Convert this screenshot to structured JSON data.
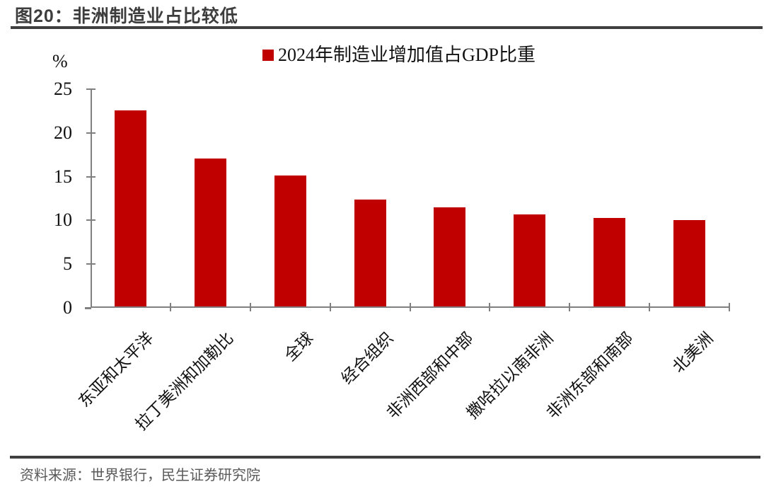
{
  "figure": {
    "title": "图20：非洲制造业占比较低",
    "source": "资料来源：世界银行，民生证券研究院"
  },
  "chart_data": {
    "type": "bar",
    "title": "图20：非洲制造业占比较低",
    "legend": [
      "2024年制造业增加值占GDP比重"
    ],
    "legend_position": "top-center",
    "unit_label": "%",
    "categories": [
      "东亚和太平洋",
      "拉丁美洲和加勒比",
      "全球",
      "经合组织",
      "非洲西部和中部",
      "撒哈拉以南非洲",
      "非洲东部和南部",
      "北美洲"
    ],
    "values": [
      22.4,
      16.9,
      15.0,
      12.2,
      11.3,
      10.5,
      10.1,
      9.9
    ],
    "ylim": [
      0,
      25
    ],
    "yticks": [
      0,
      5,
      10,
      15,
      20,
      25
    ],
    "grid": false,
    "bar_color": "#c00000",
    "axis_color": "#808080"
  }
}
